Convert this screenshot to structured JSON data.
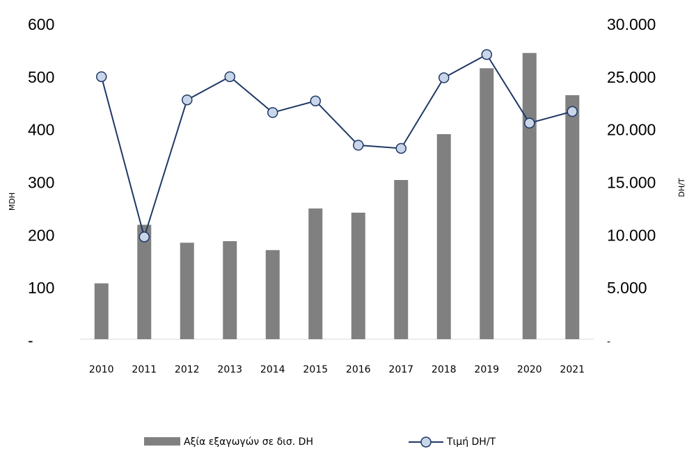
{
  "chart_data": {
    "type": "bar_line",
    "categories": [
      "2010",
      "2011",
      "2012",
      "2013",
      "2014",
      "2015",
      "2016",
      "2017",
      "2018",
      "2019",
      "2020",
      "2021"
    ],
    "series": [
      {
        "name": "Αξία εξαγωγών σε δισ. DH",
        "color": "#808080",
        "type": "bar",
        "values": [
          106,
          217,
          183,
          186,
          169,
          248,
          240,
          302,
          389,
          514,
          543,
          463
        ]
      },
      {
        "name": "Τιμή DH/T",
        "color": "#1f3864",
        "type": "line",
        "axis": "y2",
        "values": [
          24900,
          9700,
          22700,
          24900,
          21500,
          22600,
          18400,
          18100,
          24800,
          27000,
          20500,
          21600
        ]
      }
    ],
    "ylabel": "MDH",
    "y2label": "DH/T",
    "ylim": [
      0,
      600
    ],
    "yticks": [
      {
        "value": 0,
        "label": "-"
      },
      100,
      200,
      300,
      400,
      500,
      600
    ],
    "y2lim": [
      0,
      30000
    ],
    "y2ticks": [
      {
        "value": 0,
        "label": "-"
      },
      {
        "value": 5000,
        "label": "5.000"
      },
      {
        "value": 10000,
        "label": "10.000"
      },
      {
        "value": 15000,
        "label": "15.000"
      },
      {
        "value": 20000,
        "label": "20.000"
      },
      {
        "value": 25000,
        "label": "25.000"
      },
      {
        "value": 30000,
        "label": "30.000"
      }
    ],
    "legend": "bottom"
  }
}
